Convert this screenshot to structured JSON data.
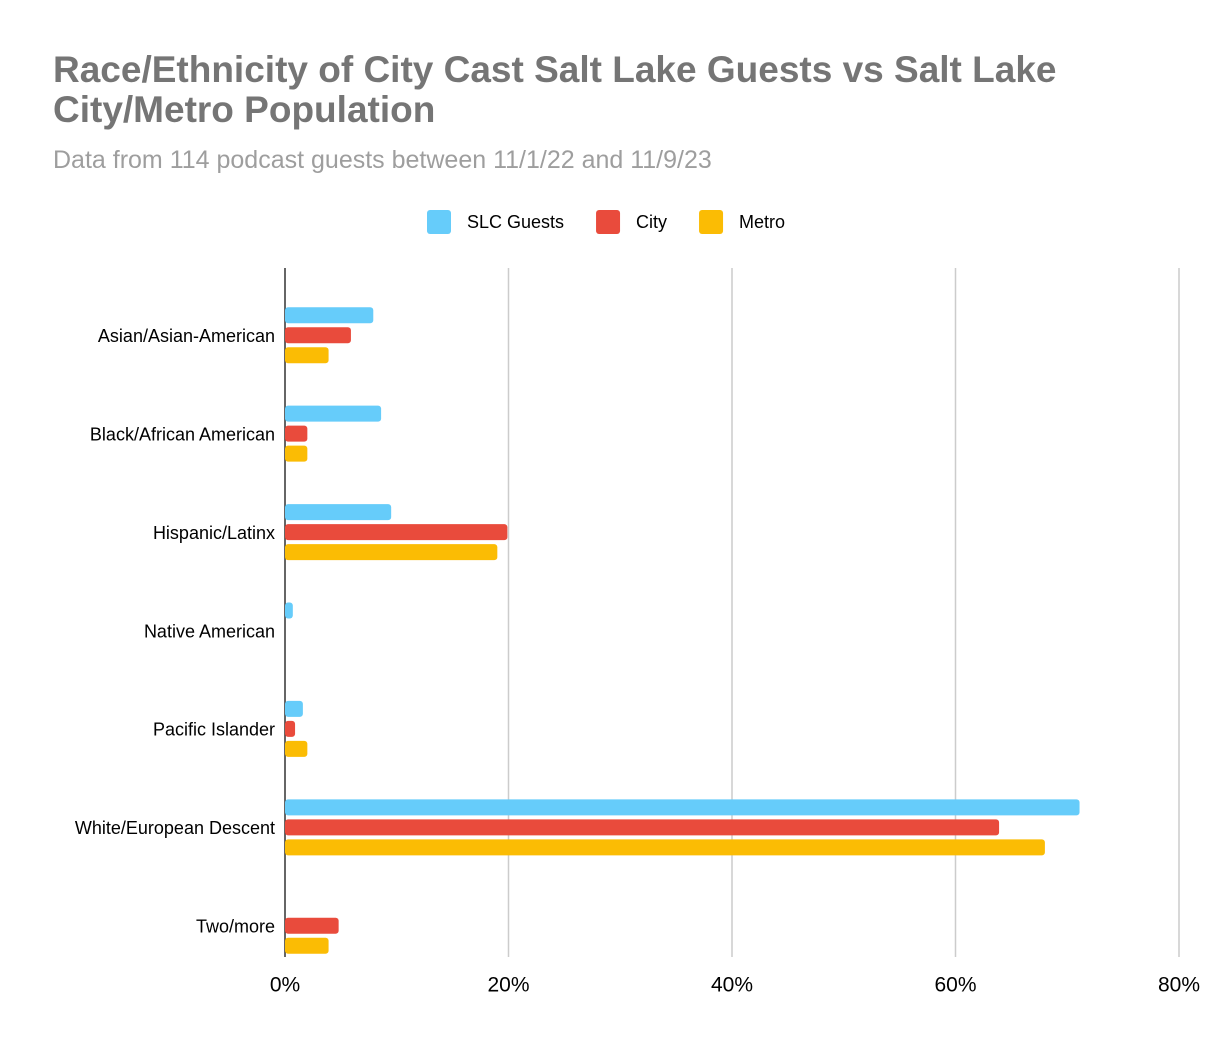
{
  "chart_data": {
    "type": "hbar",
    "title": "Race/Ethnicity of City Cast Salt Lake Guests vs Salt Lake City/Metro Population",
    "subtitle": "Data from 114 podcast guests between 11/1/22 and 11/9/23",
    "categories": [
      "Asian/Asian-American",
      "Black/African American",
      "Hispanic/Latinx",
      "Native American",
      "Pacific Islander",
      "White/European Descent",
      "Two/more"
    ],
    "series": [
      {
        "name": "SLC Guests",
        "color": "#66ccfa",
        "values": [
          7.9,
          8.6,
          9.5,
          0.7,
          1.6,
          71.1,
          0
        ]
      },
      {
        "name": "City",
        "color": "#e94b3c",
        "values": [
          5.9,
          2.0,
          19.9,
          0,
          0.9,
          63.9,
          4.8
        ]
      },
      {
        "name": "Metro",
        "color": "#fbbc04",
        "values": [
          3.9,
          2.0,
          19.0,
          0,
          2.0,
          68.0,
          3.9
        ]
      }
    ],
    "xlim": [
      0,
      80
    ],
    "xticks": [
      {
        "value": 0,
        "label": "0%"
      },
      {
        "value": 20,
        "label": "20%"
      },
      {
        "value": 40,
        "label": "40%"
      },
      {
        "value": 60,
        "label": "60%"
      },
      {
        "value": 80,
        "label": "80%"
      }
    ],
    "grid": true,
    "legend": "top"
  }
}
